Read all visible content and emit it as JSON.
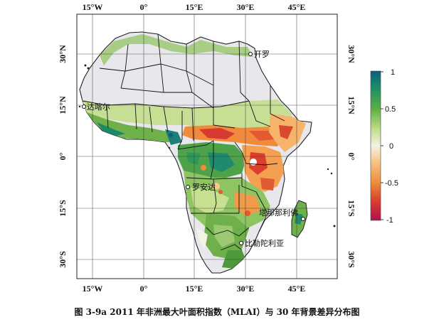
{
  "figure": {
    "caption": "图 3-9a 2011 年非洲最大叶面积指数（MLAI）与 30 年背景差异分布图"
  },
  "axes": {
    "top_ticks": [
      "15°W",
      "0°",
      "15°E",
      "30°E",
      "45°E"
    ],
    "bottom_ticks": [
      "15°W",
      "0°",
      "15°E",
      "30°E",
      "45°E"
    ],
    "left_ticks": [
      "30°N",
      "15°N",
      "0°",
      "15°S",
      "30°S"
    ],
    "right_ticks": [
      "30°N",
      "15°N",
      "0°",
      "15°S",
      "30°S"
    ]
  },
  "cities": [
    {
      "id": "cairo",
      "label": "开罗"
    },
    {
      "id": "dakar",
      "label": "达喀尔"
    },
    {
      "id": "luanda",
      "label": "罗安达"
    },
    {
      "id": "antananarivo",
      "label": "塔那那利佛"
    },
    {
      "id": "pretoria",
      "label": "比勒陀利亚"
    }
  ],
  "colorbar": {
    "ticks": [
      "1",
      "0.5",
      "0",
      "-0.5",
      "-1"
    ],
    "range": [
      -1,
      1
    ],
    "colors": [
      "#c2185b",
      "#e53935",
      "#f57c00",
      "#ffcc80",
      "#f0f0f0",
      "#c5e1a5",
      "#7cb342",
      "#2e7d32",
      "#00796b",
      "#0d47a1"
    ]
  },
  "legend_colors": {
    "desert": "#e8e8ec",
    "ocean": "#ffffff",
    "green": "#6fb04a",
    "orange": "#f08a3c",
    "red": "#d73a2e"
  }
}
